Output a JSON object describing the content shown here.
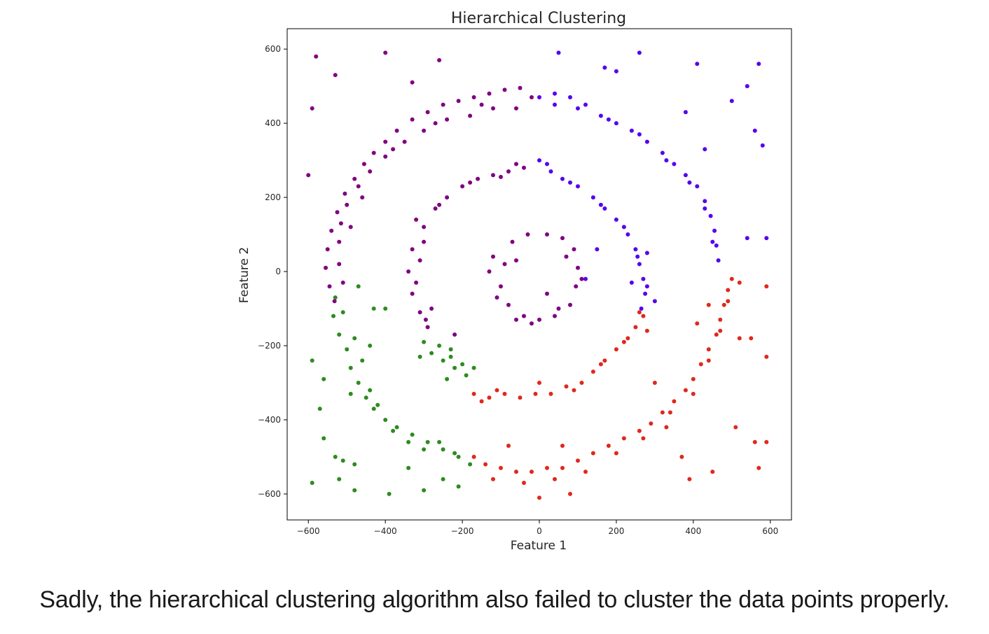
{
  "caption": "Sadly, the hierarchical clustering algorithm also failed to cluster the data points properly.",
  "chart_data": {
    "type": "scatter",
    "title": "Hierarchical Clustering",
    "xlabel": "Feature 1",
    "ylabel": "Feature 2",
    "xlim": [
      -655,
      655
    ],
    "ylim": [
      -670,
      655
    ],
    "xticks": [
      -600,
      -400,
      -200,
      0,
      200,
      400,
      600
    ],
    "yticks": [
      -600,
      -400,
      -200,
      0,
      200,
      400,
      600
    ],
    "xtick_labels": [
      "−600",
      "−400",
      "−200",
      "0",
      "200",
      "400",
      "600"
    ],
    "ytick_labels": [
      "−600",
      "−400",
      "−200",
      "0",
      "200",
      "400",
      "600"
    ],
    "grid": false,
    "legend": "none",
    "structure": "Three concentric noisy rings centred at (0, 0) with approximate radii 100 (inner), 300 (middle) and 500 (outer), plus sparse scattered outlier points; points coloured by assigned cluster.",
    "series": [
      {
        "color": "#800080",
        "points": [
          [
            -532,
            -80
          ],
          [
            -545,
            -40
          ],
          [
            -555,
            10
          ],
          [
            -550,
            60
          ],
          [
            -540,
            110
          ],
          [
            -525,
            160
          ],
          [
            -505,
            210
          ],
          [
            -480,
            250
          ],
          [
            -455,
            290
          ],
          [
            -430,
            320
          ],
          [
            -400,
            350
          ],
          [
            -370,
            380
          ],
          [
            -330,
            410
          ],
          [
            -290,
            430
          ],
          [
            -250,
            450
          ],
          [
            -210,
            460
          ],
          [
            -170,
            470
          ],
          [
            -130,
            480
          ],
          [
            -90,
            490
          ],
          [
            -50,
            495
          ],
          [
            -20,
            470
          ],
          [
            -60,
            440
          ],
          [
            -120,
            440
          ],
          [
            -180,
            420
          ],
          [
            -240,
            410
          ],
          [
            -300,
            380
          ],
          [
            -350,
            350
          ],
          [
            -400,
            310
          ],
          [
            -440,
            270
          ],
          [
            -470,
            230
          ],
          [
            -500,
            180
          ],
          [
            -515,
            130
          ],
          [
            -520,
            80
          ],
          [
            -520,
            20
          ],
          [
            -510,
            -30
          ],
          [
            -490,
            120
          ],
          [
            -460,
            200
          ],
          [
            -380,
            330
          ],
          [
            -270,
            400
          ],
          [
            -150,
            450
          ],
          [
            -320,
            140
          ],
          [
            -330,
            60
          ],
          [
            -340,
            0
          ],
          [
            -330,
            -60
          ],
          [
            -310,
            -110
          ],
          [
            -290,
            -150
          ],
          [
            -300,
            120
          ],
          [
            -270,
            170
          ],
          [
            -240,
            200
          ],
          [
            -200,
            230
          ],
          [
            -160,
            250
          ],
          [
            -120,
            260
          ],
          [
            -80,
            270
          ],
          [
            -40,
            280
          ],
          [
            -280,
            -100
          ],
          [
            -310,
            30
          ],
          [
            -260,
            180
          ],
          [
            -180,
            240
          ],
          [
            -100,
            255
          ],
          [
            -60,
            290
          ],
          [
            -300,
            80
          ],
          [
            -320,
            -30
          ],
          [
            -295,
            -130
          ],
          [
            -90,
            20
          ],
          [
            -100,
            -40
          ],
          [
            -80,
            -90
          ],
          [
            -40,
            -120
          ],
          [
            0,
            -130
          ],
          [
            40,
            -120
          ],
          [
            80,
            -90
          ],
          [
            95,
            -40
          ],
          [
            100,
            10
          ],
          [
            90,
            60
          ],
          [
            60,
            90
          ],
          [
            20,
            100
          ],
          [
            -30,
            100
          ],
          [
            -70,
            80
          ],
          [
            -120,
            40
          ],
          [
            -110,
            -70
          ],
          [
            -60,
            -130
          ],
          [
            50,
            -100
          ],
          [
            110,
            -20
          ],
          [
            70,
            40
          ],
          [
            -20,
            -140
          ],
          [
            -130,
            0
          ],
          [
            -60,
            30
          ],
          [
            20,
            -60
          ],
          [
            -580,
            580
          ],
          [
            -530,
            530
          ],
          [
            -400,
            590
          ],
          [
            -590,
            440
          ],
          [
            -600,
            260
          ],
          [
            -330,
            510
          ],
          [
            -260,
            570
          ],
          [
            -220,
            -170
          ]
        ]
      },
      {
        "color": "#5500ee",
        "points": [
          [
            0,
            470
          ],
          [
            40,
            480
          ],
          [
            80,
            470
          ],
          [
            120,
            450
          ],
          [
            160,
            420
          ],
          [
            200,
            400
          ],
          [
            240,
            380
          ],
          [
            280,
            350
          ],
          [
            320,
            320
          ],
          [
            350,
            290
          ],
          [
            380,
            260
          ],
          [
            410,
            230
          ],
          [
            430,
            190
          ],
          [
            445,
            150
          ],
          [
            455,
            110
          ],
          [
            460,
            70
          ],
          [
            465,
            30
          ],
          [
            40,
            450
          ],
          [
            100,
            440
          ],
          [
            180,
            410
          ],
          [
            260,
            370
          ],
          [
            330,
            300
          ],
          [
            390,
            240
          ],
          [
            430,
            170
          ],
          [
            450,
            80
          ],
          [
            0,
            300
          ],
          [
            30,
            270
          ],
          [
            60,
            250
          ],
          [
            100,
            230
          ],
          [
            140,
            200
          ],
          [
            170,
            170
          ],
          [
            200,
            140
          ],
          [
            230,
            100
          ],
          [
            250,
            60
          ],
          [
            260,
            20
          ],
          [
            270,
            -20
          ],
          [
            275,
            -60
          ],
          [
            265,
            -100
          ],
          [
            20,
            290
          ],
          [
            80,
            240
          ],
          [
            160,
            180
          ],
          [
            220,
            120
          ],
          [
            255,
            40
          ],
          [
            280,
            -40
          ],
          [
            500,
            460
          ],
          [
            540,
            500
          ],
          [
            570,
            560
          ],
          [
            580,
            340
          ],
          [
            560,
            380
          ],
          [
            540,
            90
          ],
          [
            590,
            90
          ],
          [
            430,
            330
          ],
          [
            260,
            590
          ],
          [
            200,
            540
          ],
          [
            170,
            550
          ],
          [
            280,
            50
          ],
          [
            50,
            590
          ],
          [
            380,
            430
          ],
          [
            410,
            560
          ],
          [
            120,
            -20
          ],
          [
            150,
            60
          ],
          [
            300,
            -80
          ],
          [
            240,
            -30
          ]
        ]
      },
      {
        "color": "#e0281c",
        "points": [
          [
            -170,
            -330
          ],
          [
            -130,
            -340
          ],
          [
            -90,
            -330
          ],
          [
            -50,
            -340
          ],
          [
            -10,
            -330
          ],
          [
            30,
            -330
          ],
          [
            70,
            -310
          ],
          [
            110,
            -300
          ],
          [
            140,
            -270
          ],
          [
            170,
            -240
          ],
          [
            200,
            -210
          ],
          [
            230,
            -180
          ],
          [
            250,
            -150
          ],
          [
            270,
            -120
          ],
          [
            -150,
            -350
          ],
          [
            -110,
            -320
          ],
          [
            0,
            -300
          ],
          [
            90,
            -320
          ],
          [
            160,
            -250
          ],
          [
            220,
            -190
          ],
          [
            260,
            -110
          ],
          [
            280,
            -160
          ],
          [
            -170,
            -500
          ],
          [
            -140,
            -520
          ],
          [
            -100,
            -530
          ],
          [
            -60,
            -540
          ],
          [
            -20,
            -540
          ],
          [
            20,
            -530
          ],
          [
            60,
            -530
          ],
          [
            100,
            -510
          ],
          [
            140,
            -490
          ],
          [
            180,
            -470
          ],
          [
            220,
            -450
          ],
          [
            260,
            -430
          ],
          [
            290,
            -410
          ],
          [
            320,
            -380
          ],
          [
            350,
            -350
          ],
          [
            380,
            -320
          ],
          [
            400,
            -290
          ],
          [
            420,
            -250
          ],
          [
            440,
            -210
          ],
          [
            460,
            -170
          ],
          [
            470,
            -130
          ],
          [
            480,
            -90
          ],
          [
            490,
            -50
          ],
          [
            500,
            -20
          ],
          [
            -120,
            -560
          ],
          [
            -40,
            -570
          ],
          [
            40,
            -560
          ],
          [
            120,
            -540
          ],
          [
            200,
            -490
          ],
          [
            270,
            -450
          ],
          [
            340,
            -380
          ],
          [
            400,
            -330
          ],
          [
            440,
            -240
          ],
          [
            470,
            -160
          ],
          [
            490,
            -80
          ],
          [
            0,
            -610
          ],
          [
            80,
            -600
          ],
          [
            390,
            -560
          ],
          [
            450,
            -540
          ],
          [
            510,
            -420
          ],
          [
            560,
            -460
          ],
          [
            590,
            -460
          ],
          [
            570,
            -530
          ],
          [
            590,
            -230
          ],
          [
            590,
            -40
          ],
          [
            520,
            -30
          ],
          [
            520,
            -180
          ],
          [
            550,
            -180
          ],
          [
            370,
            -500
          ],
          [
            440,
            -90
          ],
          [
            410,
            -140
          ],
          [
            300,
            -300
          ],
          [
            -80,
            -470
          ],
          [
            60,
            -470
          ],
          [
            330,
            -420
          ]
        ]
      },
      {
        "color": "#2e8b1f",
        "points": [
          [
            -530,
            -70
          ],
          [
            -535,
            -120
          ],
          [
            -520,
            -170
          ],
          [
            -500,
            -210
          ],
          [
            -490,
            -260
          ],
          [
            -470,
            -300
          ],
          [
            -450,
            -340
          ],
          [
            -430,
            -370
          ],
          [
            -400,
            -400
          ],
          [
            -370,
            -420
          ],
          [
            -330,
            -440
          ],
          [
            -290,
            -460
          ],
          [
            -250,
            -480
          ],
          [
            -210,
            -500
          ],
          [
            -180,
            -520
          ],
          [
            -510,
            -110
          ],
          [
            -480,
            -180
          ],
          [
            -460,
            -240
          ],
          [
            -440,
            -320
          ],
          [
            -420,
            -360
          ],
          [
            -380,
            -430
          ],
          [
            -340,
            -460
          ],
          [
            -300,
            -480
          ],
          [
            -260,
            -460
          ],
          [
            -220,
            -490
          ],
          [
            -300,
            -190
          ],
          [
            -280,
            -220
          ],
          [
            -250,
            -240
          ],
          [
            -220,
            -260
          ],
          [
            -190,
            -280
          ],
          [
            -260,
            -200
          ],
          [
            -230,
            -230
          ],
          [
            -240,
            -290
          ],
          [
            -200,
            -250
          ],
          [
            -170,
            -260
          ],
          [
            -560,
            -290
          ],
          [
            -590,
            -240
          ],
          [
            -570,
            -370
          ],
          [
            -560,
            -450
          ],
          [
            -590,
            -570
          ],
          [
            -520,
            -560
          ],
          [
            -480,
            -590
          ],
          [
            -390,
            -600
          ],
          [
            -300,
            -590
          ],
          [
            -210,
            -580
          ],
          [
            -530,
            -500
          ],
          [
            -510,
            -510
          ],
          [
            -480,
            -520
          ],
          [
            -400,
            -100
          ],
          [
            -430,
            -100
          ],
          [
            -470,
            -40
          ],
          [
            -340,
            -530
          ],
          [
            -250,
            -560
          ],
          [
            -310,
            -230
          ],
          [
            -440,
            -200
          ],
          [
            -490,
            -330
          ],
          [
            -230,
            -210
          ]
        ]
      }
    ]
  }
}
